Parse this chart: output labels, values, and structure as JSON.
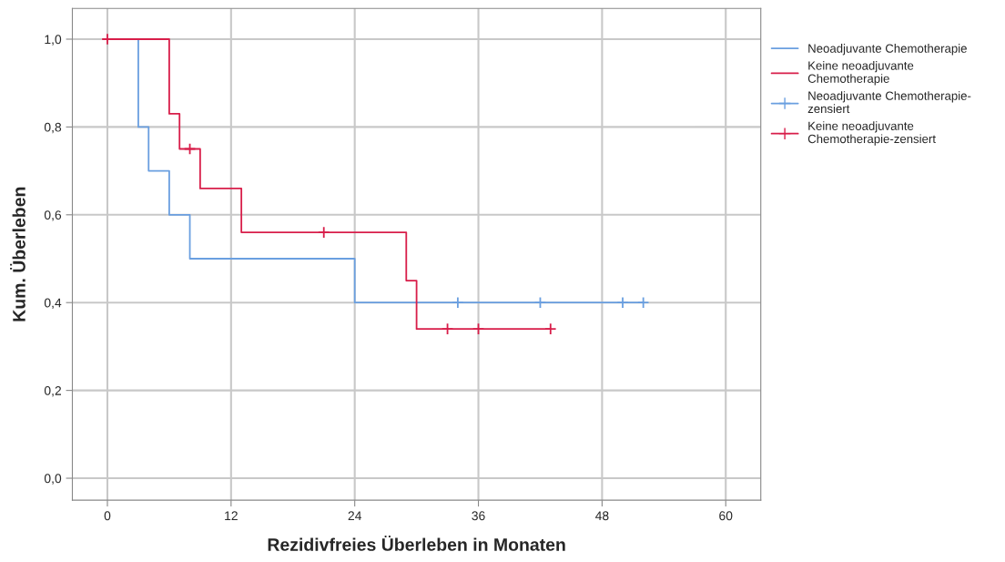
{
  "chart_data": {
    "type": "step",
    "xlabel": "Rezidivfreies Überleben in Monaten",
    "ylabel": "Kum. Überleben",
    "series": [
      {
        "name": "Neoadjuvante Chemotherapie",
        "color": "#6a9fe0",
        "x": [
          0,
          3,
          4,
          6,
          8,
          24,
          52
        ],
        "values": [
          1.0,
          0.8,
          0.7,
          0.6,
          0.5,
          0.4,
          0.4
        ]
      },
      {
        "name": "Keine neoadjuvante Chemotherapie",
        "color": "#d81e4a",
        "x": [
          0,
          6,
          7,
          9,
          13,
          29,
          30,
          43
        ],
        "values": [
          1.0,
          0.83,
          0.75,
          0.66,
          0.56,
          0.45,
          0.34,
          0.34
        ]
      },
      {
        "name": "Neoadjuvante Chemotherapie-zensiert",
        "type": "scatter",
        "marker": "cross",
        "color": "#6a9fe0",
        "x": [
          34,
          42,
          50,
          52
        ],
        "values": [
          0.4,
          0.4,
          0.4,
          0.4
        ]
      },
      {
        "name": "Keine neoadjuvante Chemotherapie-zensiert",
        "type": "scatter",
        "marker": "cross",
        "color": "#d81e4a",
        "x": [
          0,
          8,
          21,
          33,
          36,
          43
        ],
        "values": [
          1.0,
          0.75,
          0.56,
          0.34,
          0.34,
          0.34
        ]
      }
    ],
    "xlim": [
      -3.4,
      63.4
    ],
    "xticks": [
      0,
      12,
      24,
      36,
      48,
      60
    ],
    "ylim": [
      -0.05,
      1.07
    ],
    "yticks": [
      {
        "value": 0,
        "label": "0,0"
      },
      {
        "value": 0.2,
        "label": "0,2"
      },
      {
        "value": 0.4,
        "label": "0,4"
      },
      {
        "value": 0.6,
        "label": "0,6"
      },
      {
        "value": 0.8,
        "label": "0,8"
      },
      {
        "value": 1.0,
        "label": "1,0"
      }
    ],
    "grid": true,
    "legend": "right"
  }
}
